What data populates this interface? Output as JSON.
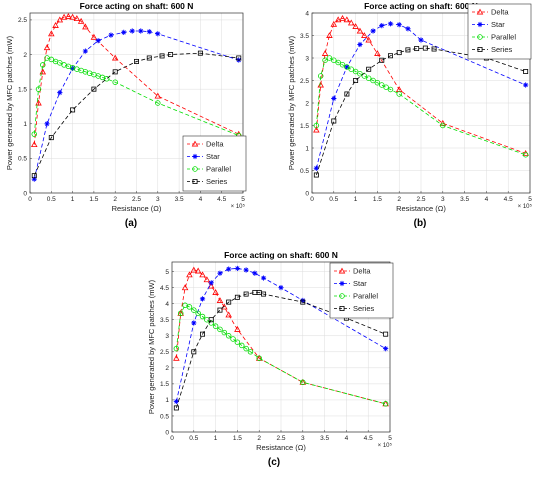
{
  "chart_data": [
    {
      "type": "line",
      "panel_label": "(a)",
      "title": "Force acting on shaft: 600 N",
      "xlabel": "Resistance (Ω)",
      "ylabel": "Power generated by MFC patches (mW)",
      "x_exponent": "× 10⁵",
      "xlim": [
        0,
        5
      ],
      "ylim": [
        0,
        2.6
      ],
      "xticks": [
        0,
        0.5,
        1,
        1.5,
        2,
        2.5,
        3,
        3.5,
        4,
        4.5,
        5
      ],
      "yticks": [
        0,
        0.5,
        1,
        1.5,
        2,
        2.5
      ],
      "legend_position": "bottom-right",
      "grid": true,
      "series": [
        {
          "name": "Delta",
          "color": "#ff0000",
          "marker": "triangle",
          "x": [
            0.1,
            0.2,
            0.3,
            0.4,
            0.5,
            0.6,
            0.7,
            0.8,
            0.9,
            1.0,
            1.1,
            1.2,
            1.3,
            1.5,
            2.0,
            3.0,
            4.9
          ],
          "y": [
            0.7,
            1.3,
            1.75,
            2.1,
            2.3,
            2.42,
            2.5,
            2.54,
            2.55,
            2.54,
            2.52,
            2.48,
            2.4,
            2.25,
            1.95,
            1.4,
            0.85
          ]
        },
        {
          "name": "Star",
          "color": "#0000ff",
          "marker": "star",
          "x": [
            0.1,
            0.4,
            0.7,
            1.0,
            1.3,
            1.6,
            1.9,
            2.2,
            2.4,
            2.6,
            2.8,
            3.0,
            4.9
          ],
          "y": [
            0.2,
            1.0,
            1.45,
            1.8,
            2.05,
            2.2,
            2.28,
            2.32,
            2.34,
            2.34,
            2.33,
            2.3,
            1.92
          ]
        },
        {
          "name": "Parallel",
          "color": "#00dd00",
          "marker": "circle",
          "x": [
            0.1,
            0.2,
            0.3,
            0.4,
            0.5,
            0.6,
            0.7,
            0.8,
            0.9,
            1.0,
            1.1,
            1.2,
            1.3,
            1.4,
            1.5,
            1.6,
            1.7,
            1.8,
            2.0,
            3.0,
            4.9
          ],
          "y": [
            0.85,
            1.5,
            1.85,
            1.95,
            1.93,
            1.9,
            1.88,
            1.85,
            1.83,
            1.81,
            1.79,
            1.77,
            1.75,
            1.73,
            1.71,
            1.69,
            1.67,
            1.65,
            1.6,
            1.3,
            0.83
          ]
        },
        {
          "name": "Series",
          "color": "#000000",
          "marker": "square",
          "x": [
            0.1,
            0.5,
            1.0,
            1.5,
            2.0,
            2.5,
            2.8,
            3.1,
            3.3,
            4.0,
            4.9
          ],
          "y": [
            0.25,
            0.8,
            1.2,
            1.5,
            1.75,
            1.9,
            1.95,
            1.98,
            2.0,
            2.02,
            1.95
          ]
        }
      ]
    },
    {
      "type": "line",
      "panel_label": "(b)",
      "title": "Force acting on shaft: 600 N",
      "xlabel": "Resistance (Ω)",
      "ylabel": "Power generated by MFC patches (mW)",
      "x_exponent": "× 10⁵",
      "xlim": [
        0,
        5
      ],
      "ylim": [
        0,
        4
      ],
      "xticks": [
        0,
        0.5,
        1,
        1.5,
        2,
        2.5,
        3,
        3.5,
        4,
        4.5,
        5
      ],
      "yticks": [
        0,
        0.5,
        1,
        1.5,
        2,
        2.5,
        3,
        3.5,
        4
      ],
      "legend_position": "top-right",
      "grid": true,
      "series": [
        {
          "name": "Delta",
          "color": "#ff0000",
          "marker": "triangle",
          "x": [
            0.1,
            0.2,
            0.3,
            0.4,
            0.5,
            0.6,
            0.7,
            0.8,
            0.9,
            1.0,
            1.1,
            1.2,
            1.3,
            1.5,
            2.0,
            3.0,
            4.9
          ],
          "y": [
            1.4,
            2.4,
            3.1,
            3.5,
            3.75,
            3.85,
            3.88,
            3.85,
            3.78,
            3.7,
            3.6,
            3.5,
            3.4,
            3.1,
            2.3,
            1.55,
            0.88
          ]
        },
        {
          "name": "Star",
          "color": "#0000ff",
          "marker": "star",
          "x": [
            0.1,
            0.5,
            0.8,
            1.1,
            1.4,
            1.6,
            1.8,
            2.0,
            2.2,
            2.5,
            4.9
          ],
          "y": [
            0.55,
            2.1,
            2.8,
            3.3,
            3.6,
            3.72,
            3.76,
            3.74,
            3.65,
            3.4,
            2.4
          ]
        },
        {
          "name": "Parallel",
          "color": "#00dd00",
          "marker": "circle",
          "x": [
            0.1,
            0.2,
            0.3,
            0.4,
            0.5,
            0.6,
            0.7,
            0.8,
            0.9,
            1.0,
            1.1,
            1.2,
            1.3,
            1.4,
            1.5,
            1.6,
            1.7,
            1.8,
            2.0,
            3.0,
            4.9
          ],
          "y": [
            1.5,
            2.6,
            2.95,
            3.0,
            2.95,
            2.9,
            2.85,
            2.8,
            2.75,
            2.7,
            2.65,
            2.6,
            2.55,
            2.5,
            2.45,
            2.4,
            2.35,
            2.3,
            2.2,
            1.5,
            0.85
          ]
        },
        {
          "name": "Series",
          "color": "#000000",
          "marker": "square",
          "x": [
            0.1,
            0.5,
            0.8,
            1.0,
            1.3,
            1.6,
            1.8,
            2.0,
            2.2,
            2.4,
            2.6,
            2.8,
            4.0,
            4.9
          ],
          "y": [
            0.4,
            1.6,
            2.2,
            2.5,
            2.75,
            2.95,
            3.05,
            3.12,
            3.18,
            3.21,
            3.22,
            3.2,
            3.0,
            2.7
          ]
        }
      ]
    },
    {
      "type": "line",
      "panel_label": "(c)",
      "title": "Force acting on shaft: 600 N",
      "xlabel": "Resistance (Ω)",
      "ylabel": "Power generated by MFC patches (mW)",
      "x_exponent": "× 10⁵",
      "xlim": [
        0,
        5
      ],
      "ylim": [
        0,
        5.3
      ],
      "xticks": [
        0,
        0.5,
        1,
        1.5,
        2,
        2.5,
        3,
        3.5,
        4,
        4.5,
        5
      ],
      "yticks": [
        0,
        0.5,
        1,
        1.5,
        2,
        2.5,
        3,
        3.5,
        4,
        4.5,
        5
      ],
      "legend_position": "top-right",
      "grid": true,
      "series": [
        {
          "name": "Delta",
          "color": "#ff0000",
          "marker": "triangle",
          "x": [
            0.1,
            0.2,
            0.3,
            0.4,
            0.5,
            0.6,
            0.7,
            0.8,
            0.9,
            1.0,
            1.1,
            1.2,
            1.3,
            1.5,
            2.0,
            3.0,
            4.9
          ],
          "y": [
            2.3,
            3.7,
            4.5,
            4.9,
            5.05,
            5.02,
            4.9,
            4.75,
            4.55,
            4.35,
            4.1,
            3.9,
            3.65,
            3.2,
            2.3,
            1.55,
            0.88
          ]
        },
        {
          "name": "Star",
          "color": "#0000ff",
          "marker": "star",
          "x": [
            0.1,
            0.5,
            0.7,
            0.9,
            1.1,
            1.3,
            1.5,
            1.7,
            1.9,
            2.1,
            2.5,
            3.0,
            4.9
          ],
          "y": [
            0.95,
            3.4,
            4.15,
            4.65,
            4.95,
            5.08,
            5.1,
            5.05,
            4.95,
            4.8,
            4.5,
            4.1,
            2.6
          ]
        },
        {
          "name": "Parallel",
          "color": "#00dd00",
          "marker": "circle",
          "x": [
            0.1,
            0.2,
            0.3,
            0.4,
            0.5,
            0.6,
            0.7,
            0.8,
            0.9,
            1.0,
            1.1,
            1.2,
            1.3,
            1.4,
            1.5,
            1.6,
            1.7,
            1.8,
            2.0,
            3.0,
            4.9
          ],
          "y": [
            2.6,
            3.7,
            3.95,
            3.9,
            3.8,
            3.7,
            3.6,
            3.5,
            3.4,
            3.3,
            3.2,
            3.1,
            3.0,
            2.9,
            2.8,
            2.7,
            2.6,
            2.5,
            2.3,
            1.55,
            0.88
          ]
        },
        {
          "name": "Series",
          "color": "#000000",
          "marker": "square",
          "x": [
            0.1,
            0.5,
            0.7,
            0.9,
            1.1,
            1.3,
            1.5,
            1.7,
            1.9,
            2.0,
            2.1,
            3.0,
            4.0,
            4.9
          ],
          "y": [
            0.75,
            2.5,
            3.05,
            3.5,
            3.8,
            4.05,
            4.2,
            4.3,
            4.35,
            4.35,
            4.3,
            4.05,
            3.55,
            3.05
          ]
        }
      ]
    }
  ]
}
